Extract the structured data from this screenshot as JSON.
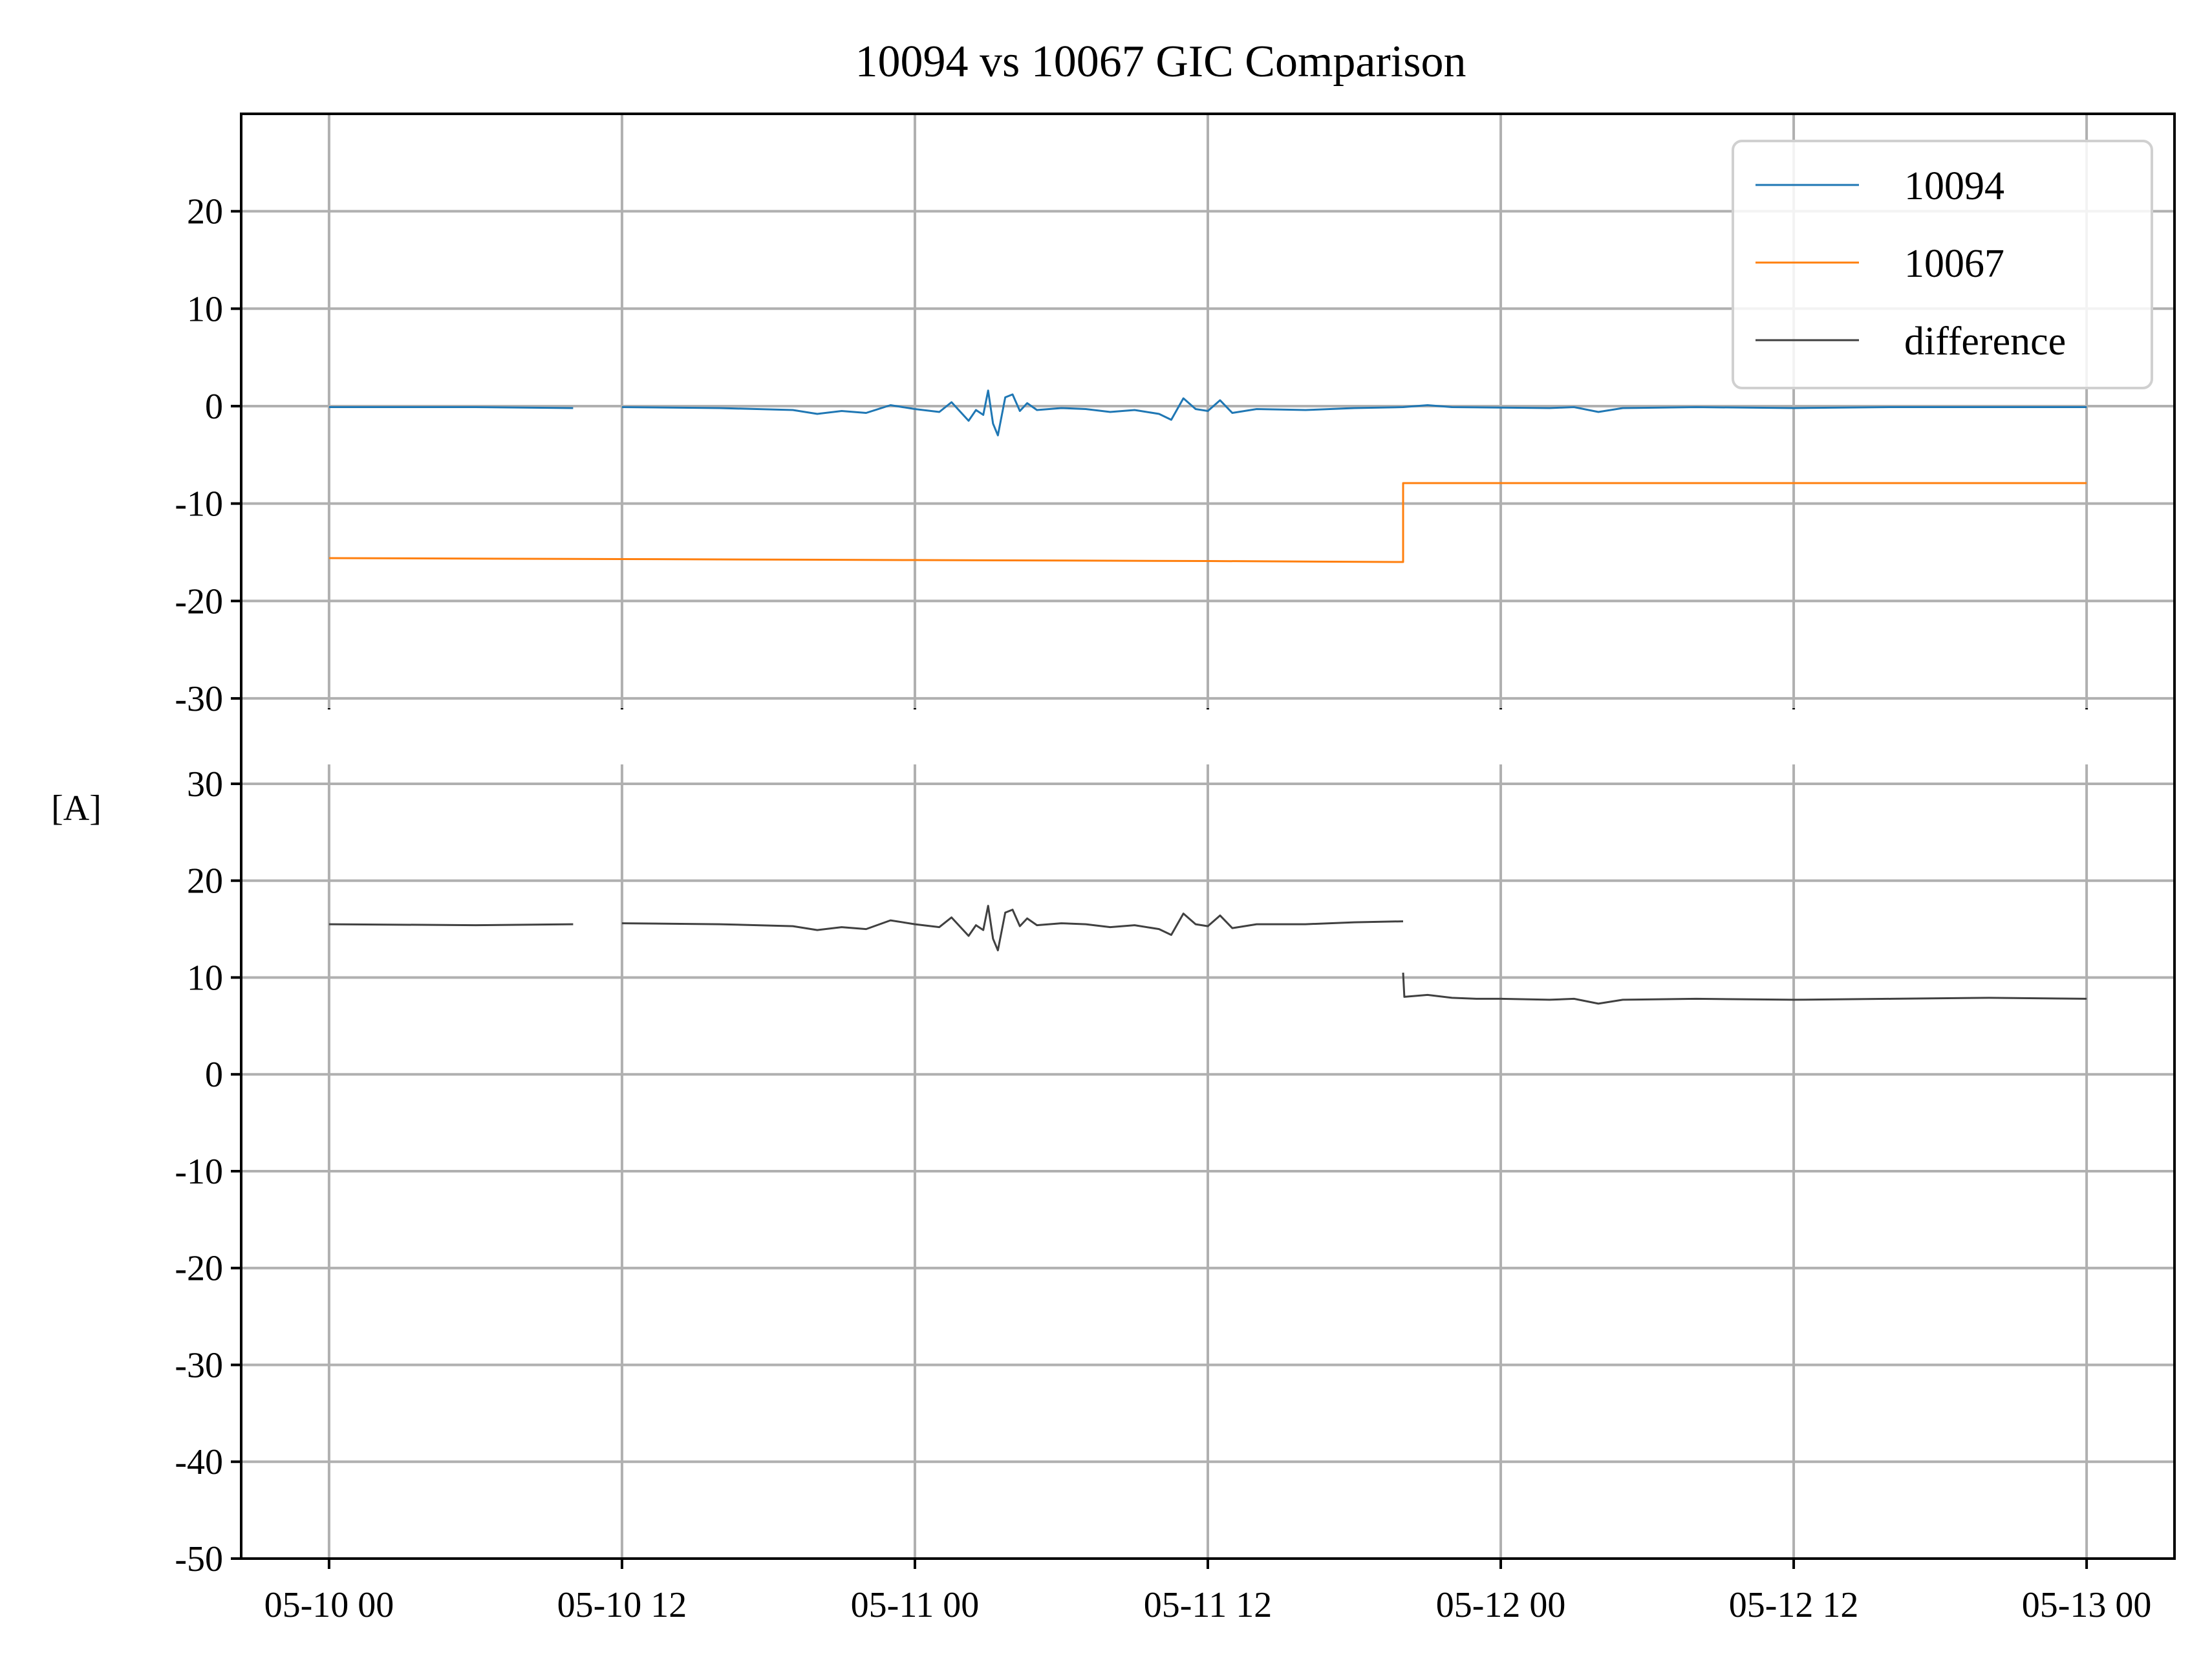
{
  "chart_data": {
    "type": "line",
    "title": "10094 vs 10067 GIC Comparison",
    "ylabel": "[A]",
    "x_tick_labels": [
      "05-10 00",
      "05-10 12",
      "05-11 00",
      "05-11 12",
      "05-12 00",
      "05-12 12",
      "05-13 00"
    ],
    "x_range_hours": [
      -3.6,
      75.6
    ],
    "grid": true,
    "legend": {
      "placement": "upper-right",
      "panel": "top"
    },
    "panels": [
      {
        "name": "top",
        "ylim": [
          -31,
          30
        ],
        "y_ticks": [
          20,
          10,
          0,
          -10,
          -20,
          -30
        ],
        "y_tick_labels": [
          "20",
          "10",
          "0",
          "-10",
          "-20",
          "-30"
        ],
        "series": [
          {
            "name": "10094",
            "color": "#1f77b4",
            "points": [
              [
                0,
                -0.1
              ],
              [
                6,
                -0.1
              ],
              [
                10,
                -0.2
              ],
              [
                10.2,
                null
              ],
              [
                11.8,
                null
              ],
              [
                12,
                -0.1
              ],
              [
                16,
                -0.2
              ],
              [
                19,
                -0.4
              ],
              [
                20,
                -0.8
              ],
              [
                21,
                -0.5
              ],
              [
                22,
                -0.7
              ],
              [
                23,
                0.1
              ],
              [
                24,
                -0.3
              ],
              [
                25,
                -0.6
              ],
              [
                25.5,
                0.4
              ],
              [
                26.2,
                -1.5
              ],
              [
                26.5,
                -0.4
              ],
              [
                26.8,
                -0.9
              ],
              [
                27.0,
                1.6
              ],
              [
                27.2,
                -1.8
              ],
              [
                27.4,
                -3.0
              ],
              [
                27.7,
                0.9
              ],
              [
                28.0,
                1.2
              ],
              [
                28.3,
                -0.5
              ],
              [
                28.6,
                0.3
              ],
              [
                29,
                -0.4
              ],
              [
                30,
                -0.2
              ],
              [
                31,
                -0.3
              ],
              [
                32,
                -0.6
              ],
              [
                33,
                -0.4
              ],
              [
                34,
                -0.8
              ],
              [
                34.5,
                -1.4
              ],
              [
                35,
                0.8
              ],
              [
                35.5,
                -0.3
              ],
              [
                36,
                -0.5
              ],
              [
                36.5,
                0.6
              ],
              [
                37,
                -0.7
              ],
              [
                38,
                -0.3
              ],
              [
                40,
                -0.4
              ],
              [
                42,
                -0.2
              ],
              [
                44,
                -0.1
              ],
              [
                45,
                0.1
              ],
              [
                46,
                -0.1
              ],
              [
                50,
                -0.2
              ],
              [
                51,
                -0.1
              ],
              [
                52,
                -0.6
              ],
              [
                53,
                -0.2
              ],
              [
                56,
                -0.1
              ],
              [
                60,
                -0.2
              ],
              [
                64,
                -0.1
              ],
              [
                68,
                -0.1
              ],
              [
                72,
                -0.1
              ]
            ]
          },
          {
            "name": "10067",
            "color": "#ff7f0e",
            "points": [
              [
                0,
                -15.6
              ],
              [
                12,
                -15.7
              ],
              [
                24,
                -15.8
              ],
              [
                36,
                -15.9
              ],
              [
                44,
                -16.0
              ],
              [
                44,
                -7.9
              ],
              [
                72,
                -7.9
              ]
            ]
          }
        ]
      },
      {
        "name": "bottom",
        "ylim": [
          -50,
          32
        ],
        "y_ticks": [
          30,
          20,
          10,
          0,
          -10,
          -20,
          -30,
          -40,
          -50
        ],
        "y_tick_labels": [
          "30",
          "20",
          "10",
          "0",
          "-10",
          "-20",
          "-30",
          "-40",
          "-50"
        ],
        "series": [
          {
            "name": "difference",
            "color": "#404040",
            "points": [
              [
                0,
                15.5
              ],
              [
                6,
                15.4
              ],
              [
                10,
                15.5
              ],
              [
                10.2,
                null
              ],
              [
                11.8,
                null
              ],
              [
                12,
                15.6
              ],
              [
                16,
                15.5
              ],
              [
                19,
                15.3
              ],
              [
                20,
                14.9
              ],
              [
                21,
                15.2
              ],
              [
                22,
                15.0
              ],
              [
                23,
                15.9
              ],
              [
                24,
                15.5
              ],
              [
                25,
                15.2
              ],
              [
                25.5,
                16.2
              ],
              [
                26.2,
                14.3
              ],
              [
                26.5,
                15.4
              ],
              [
                26.8,
                14.9
              ],
              [
                27.0,
                17.4
              ],
              [
                27.2,
                14.0
              ],
              [
                27.4,
                12.8
              ],
              [
                27.7,
                16.7
              ],
              [
                28.0,
                17.0
              ],
              [
                28.3,
                15.3
              ],
              [
                28.6,
                16.1
              ],
              [
                29,
                15.4
              ],
              [
                30,
                15.6
              ],
              [
                31,
                15.5
              ],
              [
                32,
                15.2
              ],
              [
                33,
                15.4
              ],
              [
                34,
                15.0
              ],
              [
                34.5,
                14.4
              ],
              [
                35,
                16.6
              ],
              [
                35.5,
                15.5
              ],
              [
                36,
                15.3
              ],
              [
                36.5,
                16.4
              ],
              [
                37,
                15.1
              ],
              [
                38,
                15.5
              ],
              [
                40,
                15.5
              ],
              [
                42,
                15.7
              ],
              [
                44,
                15.8
              ],
              [
                44,
                null
              ],
              [
                44,
                10.5
              ],
              [
                44.05,
                8.0
              ],
              [
                45,
                8.2
              ],
              [
                46,
                7.9
              ],
              [
                47,
                7.8
              ],
              [
                48,
                7.8
              ],
              [
                50,
                7.7
              ],
              [
                51,
                7.8
              ],
              [
                52,
                7.3
              ],
              [
                53,
                7.7
              ],
              [
                56,
                7.8
              ],
              [
                60,
                7.7
              ],
              [
                64,
                7.8
              ],
              [
                68,
                7.9
              ],
              [
                72,
                7.8
              ]
            ]
          }
        ]
      }
    ]
  }
}
